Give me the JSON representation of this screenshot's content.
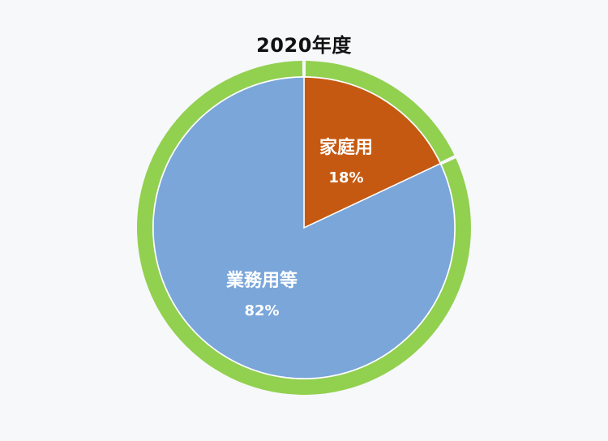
{
  "chart_data": {
    "type": "pie",
    "title": "2020年度",
    "categories": [
      "家庭用",
      "業務用等"
    ],
    "values": [
      18,
      82
    ],
    "value_labels": [
      "18%",
      "82%"
    ],
    "colors": [
      "#c65911",
      "#7aa6da"
    ],
    "ring_color": "#92d050",
    "legend": "none",
    "start_angle_deg": 0,
    "direction": "clockwise"
  }
}
